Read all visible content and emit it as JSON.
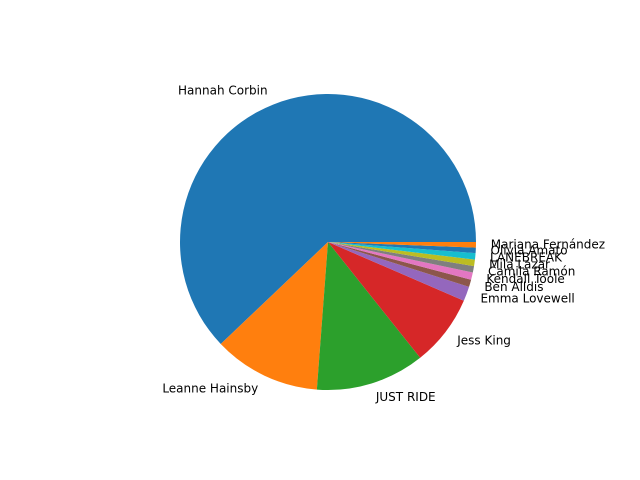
{
  "chart_data": {
    "type": "pie",
    "title": "",
    "start_angle_deg": 0,
    "direction": "counterclockwise",
    "slices": [
      {
        "label": "Hannah Corbin",
        "value": 62.1,
        "color": "#1f77b4"
      },
      {
        "label": "Leanne Hainsby",
        "value": 11.7,
        "color": "#ff7f0e"
      },
      {
        "label": "JUST RIDE",
        "value": 11.9,
        "color": "#2ca02c"
      },
      {
        "label": "Jess King",
        "value": 7.8,
        "color": "#d62728"
      },
      {
        "label": "Emma Lovewell",
        "value": 1.6,
        "color": "#9467bd"
      },
      {
        "label": "Ben Alldis",
        "value": 0.8,
        "color": "#8c564b"
      },
      {
        "label": "Kendall Toole",
        "value": 0.8,
        "color": "#e377c2"
      },
      {
        "label": "Camila Ramón",
        "value": 0.7,
        "color": "#7f7f7f"
      },
      {
        "label": "Mila Lazar",
        "value": 0.7,
        "color": "#bcbd22"
      },
      {
        "label": "LANEBREAK",
        "value": 0.7,
        "color": "#17becf"
      },
      {
        "label": "Olivia Amato",
        "value": 0.6,
        "color": "#1f77b4"
      },
      {
        "label": "Mariana Fernández",
        "value": 0.6,
        "color": "#ff7f0e"
      }
    ]
  }
}
